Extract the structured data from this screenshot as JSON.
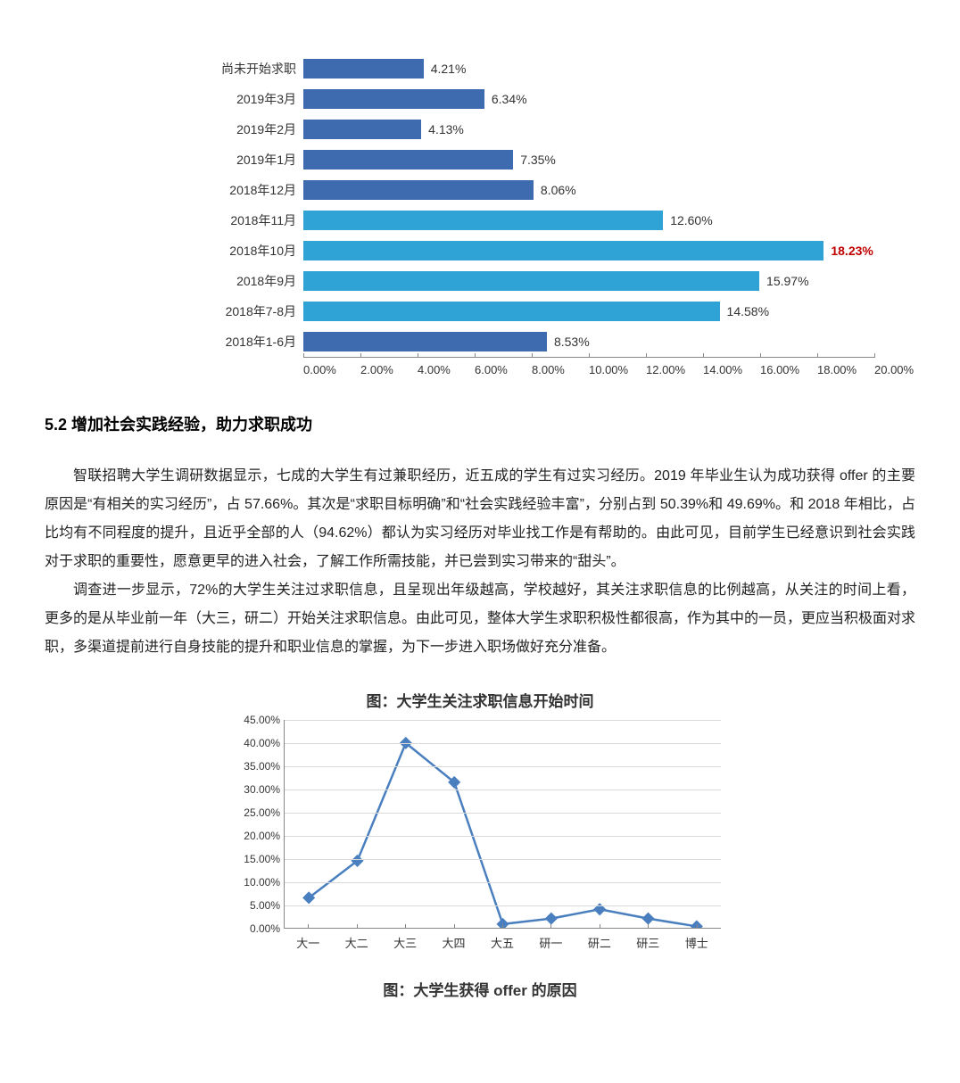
{
  "bar_chart": {
    "type": "bar-horizontal",
    "x_max": 20.0,
    "x_ticks": [
      "0.00%",
      "2.00%",
      "4.00%",
      "6.00%",
      "8.00%",
      "10.00%",
      "12.00%",
      "14.00%",
      "16.00%",
      "18.00%",
      "20.00%"
    ],
    "bars": [
      {
        "label": "尚未开始求职",
        "value": 4.21,
        "value_label": "4.21%",
        "color": "#3e6bb0",
        "value_color": "#333333"
      },
      {
        "label": "2019年3月",
        "value": 6.34,
        "value_label": "6.34%",
        "color": "#3e6bb0",
        "value_color": "#333333"
      },
      {
        "label": "2019年2月",
        "value": 4.13,
        "value_label": "4.13%",
        "color": "#3e6bb0",
        "value_color": "#333333"
      },
      {
        "label": "2019年1月",
        "value": 7.35,
        "value_label": "7.35%",
        "color": "#3e6bb0",
        "value_color": "#333333"
      },
      {
        "label": "2018年12月",
        "value": 8.06,
        "value_label": "8.06%",
        "color": "#3e6bb0",
        "value_color": "#333333"
      },
      {
        "label": "2018年11月",
        "value": 12.6,
        "value_label": "12.60%",
        "color": "#2fa3d6",
        "value_color": "#333333"
      },
      {
        "label": "2018年10月",
        "value": 18.23,
        "value_label": "18.23%",
        "color": "#2fa3d6",
        "value_color": "#c00000"
      },
      {
        "label": "2018年9月",
        "value": 15.97,
        "value_label": "15.97%",
        "color": "#2fa3d6",
        "value_color": "#333333"
      },
      {
        "label": "2018年7-8月",
        "value": 14.58,
        "value_label": "14.58%",
        "color": "#2fa3d6",
        "value_color": "#333333"
      },
      {
        "label": "2018年1-6月",
        "value": 8.53,
        "value_label": "8.53%",
        "color": "#3e6bb0",
        "value_color": "#333333"
      }
    ]
  },
  "section_heading": "5.2 增加社会实践经验，助力求职成功",
  "paragraphs": [
    "智联招聘大学生调研数据显示，七成的大学生有过兼职经历，近五成的学生有过实习经历。2019 年毕业生认为成功获得 offer 的主要原因是“有相关的实习经历”，占 57.66%。其次是“求职目标明确”和“社会实践经验丰富”，分别占到 50.39%和 49.69%。和 2018 年相比，占比均有不同程度的提升，且近乎全部的人（94.62%）都认为实习经历对毕业找工作是有帮助的。由此可见，目前学生已经意识到社会实践对于求职的重要性，愿意更早的进入社会，了解工作所需技能，并已尝到实习带来的“甜头”。",
    "调查进一步显示，72%的大学生关注过求职信息，且呈现出年级越高，学校越好，其关注求职信息的比例越高，从关注的时间上看，更多的是从毕业前一年（大三，研二）开始关注求职信息。由此可见，整体大学生求职积极性都很高，作为其中的一员，更应当积极面对求职，多渠道提前进行自身技能的提升和职业信息的掌握，为下一步进入职场做好充分准备。"
  ],
  "line_chart": {
    "caption": "图：大学生关注求职信息开始时间",
    "type": "line",
    "y_max": 45.0,
    "y_ticks": [
      "45.00%",
      "40.00%",
      "35.00%",
      "30.00%",
      "25.00%",
      "20.00%",
      "15.00%",
      "10.00%",
      "5.00%",
      "0.00%"
    ],
    "categories": [
      "大一",
      "大二",
      "大三",
      "大四",
      "大五",
      "研一",
      "研二",
      "研三",
      "博士"
    ],
    "values": [
      6.5,
      14.5,
      40.0,
      31.5,
      0.8,
      2.0,
      4.0,
      2.0,
      0.3
    ],
    "line_color": "#4a7fbf",
    "marker_color": "#4a7fbf",
    "grid_color": "#d9d9d9",
    "marker_size": 5,
    "line_width": 2.5
  },
  "bottom_caption": "图：大学生获得 offer 的原因"
}
